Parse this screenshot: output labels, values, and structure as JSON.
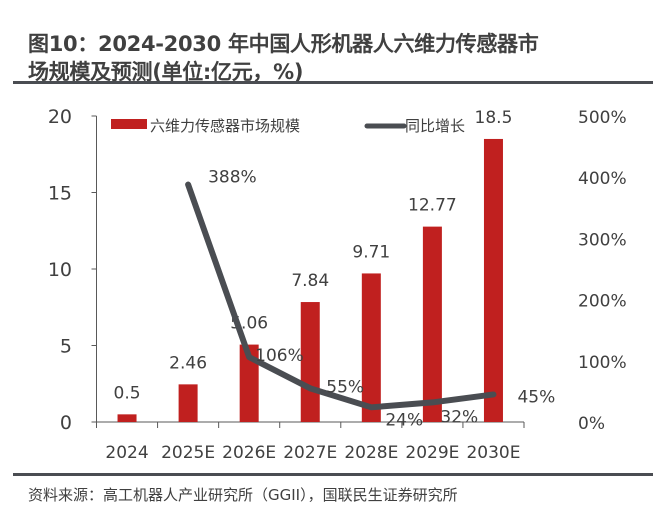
{
  "title_line1": "图10：2024-2030  年中国人形机器人六维力传感器市",
  "title_line2": "场规模及预测(单位:亿元，%)",
  "source": "资料来源：高工机器人产业研究所（GGII），国联民生证券研究所",
  "chart_data": {
    "type": "bar+line",
    "categories": [
      "2024",
      "2025E",
      "2026E",
      "2027E",
      "2028E",
      "2029E",
      "2030E"
    ],
    "series": [
      {
        "name": "六维力传感器市场规模",
        "type": "bar",
        "axis": "left",
        "color": "#c0201f",
        "values": [
          0.5,
          2.46,
          5.06,
          7.84,
          9.71,
          12.77,
          18.5
        ],
        "labels": [
          "0.5",
          "2.46",
          "5.06",
          "7.84",
          "9.71",
          "12.77",
          "18.5"
        ]
      },
      {
        "name": "同比增长",
        "type": "line",
        "axis": "right",
        "color": "#4a4d52",
        "values": [
          null,
          388,
          106,
          55,
          24,
          32,
          45
        ],
        "labels": [
          "",
          "388%",
          "106%",
          "55%",
          "24%",
          "32%",
          "45%"
        ]
      }
    ],
    "left_axis": {
      "ylim": [
        0,
        20
      ],
      "ticks": [
        "0",
        "5",
        "10",
        "15",
        "20"
      ]
    },
    "right_axis": {
      "ylim": [
        0,
        500
      ],
      "ticks": [
        "0%",
        "100%",
        "200%",
        "300%",
        "400%",
        "500%"
      ]
    },
    "legend_placement": "top"
  }
}
